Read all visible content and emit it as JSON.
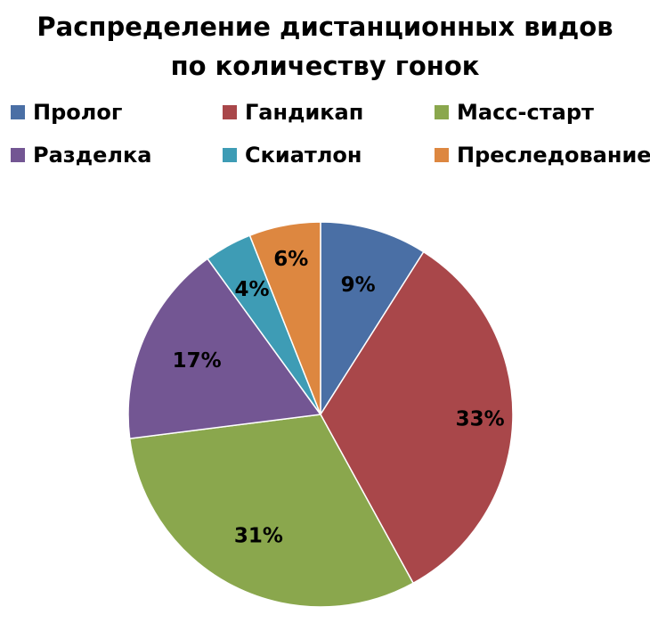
{
  "chart_data": {
    "type": "pie",
    "title_lines": [
      "Распределение дистанционных видов",
      "по количеству гонок"
    ],
    "categories": [
      "Пролог",
      "Гандикап",
      "Масс-старт",
      "Разделка",
      "Скиатлон",
      "Преследование"
    ],
    "values": [
      9,
      33,
      31,
      17,
      4,
      6
    ],
    "value_labels": [
      "9%",
      "33%",
      "31%",
      "17%",
      "4%",
      "6%"
    ],
    "colors": [
      "#4a6fa5",
      "#a9474a",
      "#8aa74d",
      "#735693",
      "#3e9cb5",
      "#dd8740"
    ],
    "legend_position": "top",
    "start_angle": "12 o'clock",
    "direction": "clockwise"
  }
}
